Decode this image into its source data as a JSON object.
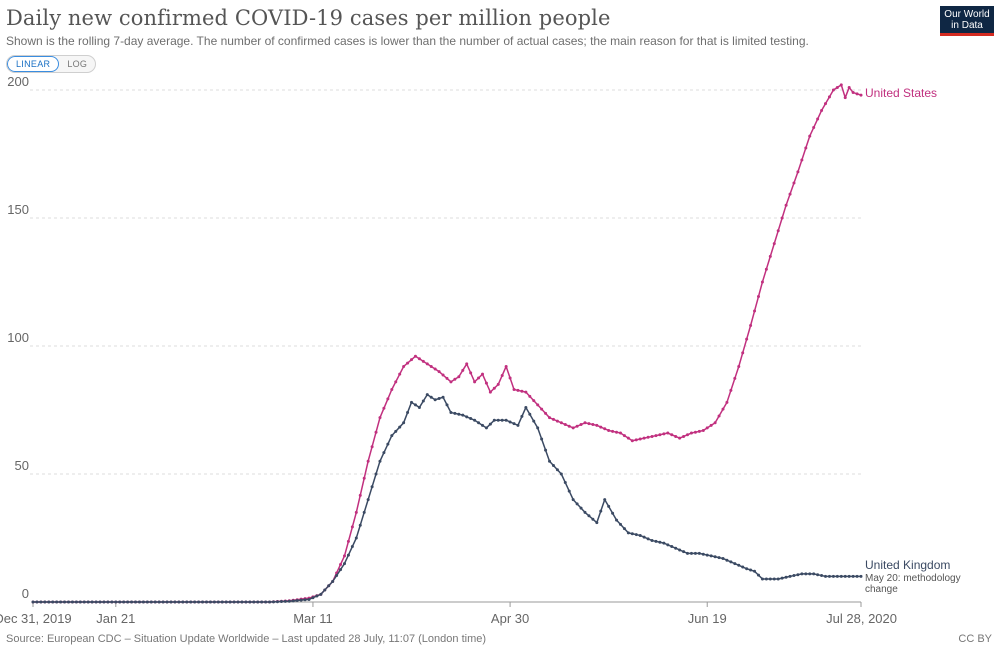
{
  "header": {
    "title": "Daily new confirmed COVID-19 cases per million people",
    "subtitle": "Shown is the rolling 7-day average. The number of confirmed cases is lower than the number of actual cases; the main reason for that is limited testing.",
    "scale_toggle": {
      "linear_label": "LINEAR",
      "log_label": "LOG",
      "selected": "LINEAR"
    },
    "logo_line1": "Our World",
    "logo_line2": "in Data",
    "logo_colors": {
      "background": "#0f2744",
      "underline": "#d42b21"
    }
  },
  "footer": {
    "source": "Source: European CDC – Situation Update Worldwide – Last updated 28 July, 11:07 (London time)",
    "license": "CC BY"
  },
  "chart_data": {
    "type": "line",
    "title": "Daily new confirmed COVID-19 cases per million people",
    "x_axis": {
      "start": "2019-12-31",
      "end": "2020-07-28",
      "tick_dates": [
        "2019-12-31",
        "2020-01-21",
        "2020-03-11",
        "2020-04-30",
        "2020-06-19",
        "2020-07-28"
      ],
      "tick_labels": [
        "Dec 31, 2019",
        "Jan 21",
        "Mar 11",
        "Apr 30",
        "Jun 19",
        "Jul 28, 2020"
      ]
    },
    "y_axis": {
      "ylim": [
        0,
        200
      ],
      "ticks": [
        0,
        50,
        100,
        150,
        200
      ],
      "grid": true,
      "scale": "linear"
    },
    "series": [
      {
        "name": "United States",
        "color": "#c1307f",
        "points": [
          [
            "2019-12-31",
            0
          ],
          [
            "2020-02-29",
            0
          ],
          [
            "2020-03-05",
            0.5
          ],
          [
            "2020-03-10",
            1.5
          ],
          [
            "2020-03-13",
            3
          ],
          [
            "2020-03-16",
            8
          ],
          [
            "2020-03-19",
            18
          ],
          [
            "2020-03-22",
            35
          ],
          [
            "2020-03-25",
            55
          ],
          [
            "2020-03-28",
            72
          ],
          [
            "2020-03-31",
            83
          ],
          [
            "2020-04-03",
            92
          ],
          [
            "2020-04-06",
            96
          ],
          [
            "2020-04-09",
            93
          ],
          [
            "2020-04-12",
            90
          ],
          [
            "2020-04-15",
            86
          ],
          [
            "2020-04-17",
            88
          ],
          [
            "2020-04-19",
            93
          ],
          [
            "2020-04-21",
            86
          ],
          [
            "2020-04-23",
            89
          ],
          [
            "2020-04-25",
            82
          ],
          [
            "2020-04-27",
            85
          ],
          [
            "2020-04-29",
            92
          ],
          [
            "2020-05-01",
            83
          ],
          [
            "2020-05-04",
            82
          ],
          [
            "2020-05-07",
            77
          ],
          [
            "2020-05-10",
            72
          ],
          [
            "2020-05-13",
            70
          ],
          [
            "2020-05-16",
            68
          ],
          [
            "2020-05-19",
            70
          ],
          [
            "2020-05-22",
            69
          ],
          [
            "2020-05-25",
            67
          ],
          [
            "2020-05-28",
            66
          ],
          [
            "2020-05-31",
            63
          ],
          [
            "2020-06-03",
            64
          ],
          [
            "2020-06-06",
            65
          ],
          [
            "2020-06-09",
            66
          ],
          [
            "2020-06-12",
            64
          ],
          [
            "2020-06-15",
            66
          ],
          [
            "2020-06-18",
            67
          ],
          [
            "2020-06-21",
            70
          ],
          [
            "2020-06-24",
            78
          ],
          [
            "2020-06-27",
            92
          ],
          [
            "2020-06-30",
            108
          ],
          [
            "2020-07-03",
            125
          ],
          [
            "2020-07-06",
            140
          ],
          [
            "2020-07-09",
            155
          ],
          [
            "2020-07-12",
            168
          ],
          [
            "2020-07-15",
            182
          ],
          [
            "2020-07-18",
            192
          ],
          [
            "2020-07-21",
            200
          ],
          [
            "2020-07-23",
            202
          ],
          [
            "2020-07-24",
            197
          ],
          [
            "2020-07-25",
            201
          ],
          [
            "2020-07-26",
            199
          ],
          [
            "2020-07-28",
            198
          ]
        ]
      },
      {
        "name": "United Kingdom",
        "color": "#3b4a63",
        "points": [
          [
            "2019-12-31",
            0
          ],
          [
            "2020-02-29",
            0
          ],
          [
            "2020-03-05",
            0.3
          ],
          [
            "2020-03-10",
            1
          ],
          [
            "2020-03-13",
            3
          ],
          [
            "2020-03-16",
            8
          ],
          [
            "2020-03-19",
            15
          ],
          [
            "2020-03-22",
            25
          ],
          [
            "2020-03-25",
            40
          ],
          [
            "2020-03-28",
            55
          ],
          [
            "2020-03-31",
            65
          ],
          [
            "2020-04-03",
            70
          ],
          [
            "2020-04-05",
            78
          ],
          [
            "2020-04-07",
            76
          ],
          [
            "2020-04-09",
            81
          ],
          [
            "2020-04-11",
            79
          ],
          [
            "2020-04-13",
            80
          ],
          [
            "2020-04-15",
            74
          ],
          [
            "2020-04-18",
            73
          ],
          [
            "2020-04-21",
            71
          ],
          [
            "2020-04-24",
            68
          ],
          [
            "2020-04-26",
            71
          ],
          [
            "2020-04-29",
            71
          ],
          [
            "2020-05-02",
            69
          ],
          [
            "2020-05-04",
            76
          ],
          [
            "2020-05-07",
            68
          ],
          [
            "2020-05-10",
            55
          ],
          [
            "2020-05-13",
            50
          ],
          [
            "2020-05-16",
            40
          ],
          [
            "2020-05-19",
            35
          ],
          [
            "2020-05-22",
            31
          ],
          [
            "2020-05-24",
            40
          ],
          [
            "2020-05-27",
            32
          ],
          [
            "2020-05-30",
            27
          ],
          [
            "2020-06-02",
            26
          ],
          [
            "2020-06-05",
            24
          ],
          [
            "2020-06-08",
            23
          ],
          [
            "2020-06-11",
            21
          ],
          [
            "2020-06-14",
            19
          ],
          [
            "2020-06-17",
            19
          ],
          [
            "2020-06-20",
            18
          ],
          [
            "2020-06-23",
            17
          ],
          [
            "2020-06-26",
            15
          ],
          [
            "2020-06-29",
            13
          ],
          [
            "2020-07-01",
            12
          ],
          [
            "2020-07-03",
            9
          ],
          [
            "2020-07-07",
            9
          ],
          [
            "2020-07-10",
            10
          ],
          [
            "2020-07-13",
            11
          ],
          [
            "2020-07-16",
            11
          ],
          [
            "2020-07-19",
            10
          ],
          [
            "2020-07-22",
            10
          ],
          [
            "2020-07-25",
            10
          ],
          [
            "2020-07-28",
            10
          ]
        ]
      }
    ],
    "annotations": [
      {
        "series": "United Kingdom",
        "line1": "May 20: methodology",
        "line2": "change"
      }
    ]
  }
}
